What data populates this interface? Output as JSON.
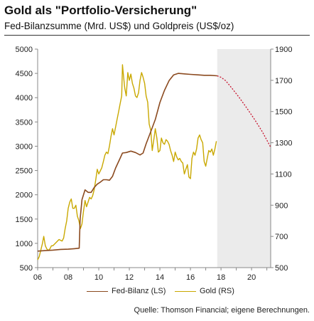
{
  "header": {
    "title": "Gold als \"Portfolio-Versicherung\"",
    "subtitle": "Fed-Bilanzsumme (Mrd. US$) und Goldpreis (US$/oz)"
  },
  "source": "Quelle: Thomson Financial; eigene Berechnungen.",
  "colors": {
    "fed": "#8b4a1f",
    "gold": "#c9a800",
    "forecast": "#c8142e",
    "forecast_shade": "#ebebeb",
    "axis": "#888888"
  },
  "chart_data": {
    "type": "line",
    "x_ticks": [
      "06",
      "08",
      "10",
      "12",
      "14",
      "16",
      "18",
      "20"
    ],
    "x_tick_values": [
      2006,
      2008,
      2010,
      2012,
      2014,
      2016,
      2018,
      2020
    ],
    "xlim": [
      2006,
      2021.25
    ],
    "ylim_left": [
      500,
      5000
    ],
    "ylim_right": [
      500,
      1900
    ],
    "y_ticks_left": [
      500,
      1000,
      1500,
      2000,
      2500,
      3000,
      3500,
      4000,
      4500,
      5000
    ],
    "y_ticks_right": [
      500,
      700,
      900,
      1100,
      1300,
      1500,
      1700,
      1900
    ],
    "forecast_start": 2017.75,
    "grid": false,
    "legend_position": "bottom",
    "series": [
      {
        "name": "Fed-Bilanz (LS)",
        "axis": "left",
        "points": [
          [
            2006.0,
            840
          ],
          [
            2006.5,
            850
          ],
          [
            2007.0,
            860
          ],
          [
            2007.5,
            875
          ],
          [
            2008.0,
            880
          ],
          [
            2008.4,
            890
          ],
          [
            2008.72,
            900
          ],
          [
            2008.78,
            1500
          ],
          [
            2008.9,
            1900
          ],
          [
            2009.1,
            2100
          ],
          [
            2009.3,
            2050
          ],
          [
            2009.5,
            2050
          ],
          [
            2009.7,
            2150
          ],
          [
            2009.9,
            2220
          ],
          [
            2010.1,
            2260
          ],
          [
            2010.3,
            2310
          ],
          [
            2010.5,
            2310
          ],
          [
            2010.7,
            2300
          ],
          [
            2010.9,
            2380
          ],
          [
            2011.1,
            2550
          ],
          [
            2011.35,
            2720
          ],
          [
            2011.55,
            2860
          ],
          [
            2011.8,
            2870
          ],
          [
            2012.1,
            2900
          ],
          [
            2012.4,
            2870
          ],
          [
            2012.7,
            2820
          ],
          [
            2012.9,
            2860
          ],
          [
            2013.1,
            3050
          ],
          [
            2013.4,
            3300
          ],
          [
            2013.7,
            3550
          ],
          [
            2014.0,
            3900
          ],
          [
            2014.3,
            4150
          ],
          [
            2014.6,
            4350
          ],
          [
            2014.9,
            4470
          ],
          [
            2015.2,
            4500
          ],
          [
            2015.6,
            4490
          ],
          [
            2016.0,
            4480
          ],
          [
            2016.5,
            4470
          ],
          [
            2016.9,
            4460
          ],
          [
            2017.3,
            4460
          ],
          [
            2017.75,
            4450
          ]
        ],
        "forecast": [
          [
            2017.75,
            4450
          ],
          [
            2018.0,
            4420
          ],
          [
            2018.3,
            4350
          ],
          [
            2018.7,
            4200
          ],
          [
            2019.2,
            4000
          ],
          [
            2019.7,
            3780
          ],
          [
            2020.2,
            3550
          ],
          [
            2020.7,
            3300
          ],
          [
            2021.25,
            2980
          ]
        ]
      },
      {
        "name": "Gold (RS)",
        "axis": "right",
        "points": [
          [
            2006.0,
            550
          ],
          [
            2006.1,
            570
          ],
          [
            2006.2,
            610
          ],
          [
            2006.3,
            650
          ],
          [
            2006.4,
            700
          ],
          [
            2006.5,
            640
          ],
          [
            2006.6,
            620
          ],
          [
            2006.7,
            610
          ],
          [
            2006.8,
            620
          ],
          [
            2006.9,
            640
          ],
          [
            2007.0,
            640
          ],
          [
            2007.2,
            660
          ],
          [
            2007.4,
            680
          ],
          [
            2007.6,
            670
          ],
          [
            2007.7,
            690
          ],
          [
            2007.8,
            750
          ],
          [
            2007.9,
            800
          ],
          [
            2008.0,
            880
          ],
          [
            2008.1,
            920
          ],
          [
            2008.2,
            940
          ],
          [
            2008.3,
            880
          ],
          [
            2008.4,
            880
          ],
          [
            2008.5,
            900
          ],
          [
            2008.6,
            830
          ],
          [
            2008.7,
            800
          ],
          [
            2008.8,
            750
          ],
          [
            2008.9,
            780
          ],
          [
            2009.0,
            860
          ],
          [
            2009.1,
            930
          ],
          [
            2009.2,
            890
          ],
          [
            2009.3,
            920
          ],
          [
            2009.4,
            950
          ],
          [
            2009.5,
            940
          ],
          [
            2009.6,
            960
          ],
          [
            2009.7,
            1000
          ],
          [
            2009.8,
            1060
          ],
          [
            2009.9,
            1130
          ],
          [
            2010.0,
            1100
          ],
          [
            2010.1,
            1120
          ],
          [
            2010.2,
            1140
          ],
          [
            2010.3,
            1180
          ],
          [
            2010.4,
            1220
          ],
          [
            2010.5,
            1240
          ],
          [
            2010.6,
            1230
          ],
          [
            2010.7,
            1280
          ],
          [
            2010.8,
            1340
          ],
          [
            2010.9,
            1390
          ],
          [
            2011.0,
            1350
          ],
          [
            2011.1,
            1400
          ],
          [
            2011.2,
            1450
          ],
          [
            2011.3,
            1500
          ],
          [
            2011.4,
            1550
          ],
          [
            2011.5,
            1600
          ],
          [
            2011.55,
            1800
          ],
          [
            2011.6,
            1750
          ],
          [
            2011.7,
            1650
          ],
          [
            2011.8,
            1600
          ],
          [
            2011.9,
            1750
          ],
          [
            2012.0,
            1700
          ],
          [
            2012.1,
            1740
          ],
          [
            2012.2,
            1680
          ],
          [
            2012.3,
            1650
          ],
          [
            2012.4,
            1600
          ],
          [
            2012.5,
            1590
          ],
          [
            2012.6,
            1620
          ],
          [
            2012.7,
            1700
          ],
          [
            2012.8,
            1750
          ],
          [
            2012.9,
            1720
          ],
          [
            2013.0,
            1680
          ],
          [
            2013.1,
            1600
          ],
          [
            2013.2,
            1560
          ],
          [
            2013.3,
            1420
          ],
          [
            2013.4,
            1380
          ],
          [
            2013.5,
            1250
          ],
          [
            2013.6,
            1320
          ],
          [
            2013.7,
            1390
          ],
          [
            2013.8,
            1330
          ],
          [
            2013.9,
            1240
          ],
          [
            2014.0,
            1250
          ],
          [
            2014.1,
            1330
          ],
          [
            2014.2,
            1300
          ],
          [
            2014.3,
            1290
          ],
          [
            2014.4,
            1320
          ],
          [
            2014.5,
            1310
          ],
          [
            2014.6,
            1290
          ],
          [
            2014.7,
            1250
          ],
          [
            2014.8,
            1220
          ],
          [
            2014.9,
            1180
          ],
          [
            2015.0,
            1240
          ],
          [
            2015.1,
            1210
          ],
          [
            2015.2,
            1190
          ],
          [
            2015.3,
            1200
          ],
          [
            2015.4,
            1180
          ],
          [
            2015.5,
            1170
          ],
          [
            2015.6,
            1100
          ],
          [
            2015.7,
            1130
          ],
          [
            2015.8,
            1160
          ],
          [
            2015.9,
            1080
          ],
          [
            2016.0,
            1070
          ],
          [
            2016.1,
            1200
          ],
          [
            2016.2,
            1240
          ],
          [
            2016.3,
            1220
          ],
          [
            2016.4,
            1260
          ],
          [
            2016.5,
            1330
          ],
          [
            2016.6,
            1350
          ],
          [
            2016.7,
            1320
          ],
          [
            2016.8,
            1300
          ],
          [
            2016.9,
            1180
          ],
          [
            2017.0,
            1150
          ],
          [
            2017.1,
            1200
          ],
          [
            2017.2,
            1250
          ],
          [
            2017.3,
            1240
          ],
          [
            2017.4,
            1260
          ],
          [
            2017.5,
            1220
          ],
          [
            2017.6,
            1260
          ],
          [
            2017.7,
            1310
          ]
        ]
      }
    ]
  }
}
